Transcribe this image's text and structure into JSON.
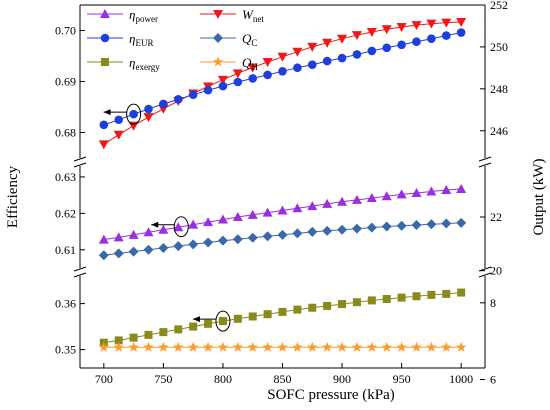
{
  "chart_data": {
    "type": "line",
    "xlabel": "SOFC pressure (kPa)",
    "ylabel_left": "Efficiency",
    "ylabel_right": "Output (kW)",
    "xlim": [
      680,
      1020
    ],
    "x_ticks": [
      "700",
      "750",
      "800",
      "850",
      "900",
      "950",
      "1000"
    ],
    "x": [
      700,
      712.5,
      725,
      737.5,
      750,
      762.5,
      775,
      787.5,
      800,
      812.5,
      825,
      837.5,
      850,
      862.5,
      875,
      887.5,
      900,
      912.5,
      925,
      937.5,
      950,
      962.5,
      975,
      987.5,
      1000
    ],
    "left_axis": {
      "panels": [
        {
          "range": [
            0.675,
            0.705
          ],
          "ticks": [
            "0.68",
            "0.69",
            "0.70"
          ]
        },
        {
          "range": [
            0.605,
            0.633
          ],
          "ticks": [
            "0.61",
            "0.62",
            "0.63"
          ]
        },
        {
          "range": [
            0.346,
            0.366
          ],
          "ticks": [
            "0.35",
            "0.36"
          ]
        }
      ]
    },
    "right_axis": {
      "panels": [
        {
          "range": [
            244.7,
            252
          ],
          "ticks": [
            "246",
            "248",
            "250",
            "252"
          ]
        },
        {
          "range": [
            20.1,
            23.9
          ],
          "ticks": [
            "20",
            "22"
          ]
        },
        {
          "range": [
            6.3,
            8.7
          ],
          "ticks": [
            "6",
            "8"
          ]
        }
      ]
    },
    "legend": {
      "placement": "top-left",
      "entries": [
        {
          "main": "η",
          "sub": "power",
          "color": "#9a2ee0",
          "marker": "triangle-up"
        },
        {
          "main": "W",
          "sub": "net",
          "color": "#f01818",
          "marker": "triangle-down"
        },
        {
          "main": "η",
          "sub": "EUR",
          "color": "#1f3fdc",
          "marker": "circle"
        },
        {
          "main": "Q",
          "sub": "C",
          "color": "#3a68a8",
          "marker": "diamond"
        },
        {
          "main": "η",
          "sub": "exergy",
          "color": "#8a8a1a",
          "marker": "square"
        },
        {
          "main": "Q",
          "sub": "H",
          "color": "#ff9b2e",
          "marker": "star"
        }
      ]
    },
    "series": [
      {
        "name": "η power",
        "axis": "left",
        "panel": 1,
        "color": "#9a2ee0",
        "marker": "triangle-up",
        "values": [
          0.6128,
          0.6134,
          0.6141,
          0.6148,
          0.6155,
          0.6162,
          0.6169,
          0.6176,
          0.6183,
          0.619,
          0.6196,
          0.6202,
          0.6208,
          0.6214,
          0.622,
          0.6226,
          0.6232,
          0.6237,
          0.6242,
          0.6247,
          0.6252,
          0.6256,
          0.626,
          0.6264,
          0.6267
        ]
      },
      {
        "name": "W net",
        "axis": "right",
        "panel": 0,
        "color": "#f01818",
        "marker": "triangle-down",
        "values": [
          245.35,
          245.81,
          246.24,
          246.65,
          247.05,
          247.42,
          247.78,
          248.11,
          248.43,
          248.74,
          249.02,
          249.28,
          249.53,
          249.77,
          250.0,
          250.2,
          250.39,
          250.56,
          250.71,
          250.84,
          250.95,
          251.04,
          251.11,
          251.16,
          251.19
        ]
      },
      {
        "name": "η EUR",
        "axis": "left",
        "panel": 0,
        "color": "#1f3fdc",
        "marker": "circle",
        "values": [
          0.6815,
          0.6825,
          0.6836,
          0.6846,
          0.6856,
          0.6865,
          0.6874,
          0.6883,
          0.6891,
          0.6899,
          0.6906,
          0.6913,
          0.692,
          0.6927,
          0.6933,
          0.694,
          0.6946,
          0.6953,
          0.696,
          0.6966,
          0.6972,
          0.6978,
          0.6984,
          0.699,
          0.6996
        ]
      },
      {
        "name": "Q C",
        "axis": "left",
        "panel": 1,
        "color": "#3a68a8",
        "marker": "diamond",
        "values": [
          0.6085,
          0.609,
          0.6095,
          0.61,
          0.6105,
          0.611,
          0.6115,
          0.612,
          0.6125,
          0.6129,
          0.6133,
          0.6137,
          0.6141,
          0.6145,
          0.6149,
          0.6152,
          0.6155,
          0.6158,
          0.6161,
          0.6164,
          0.6166,
          0.6168,
          0.617,
          0.6172,
          0.6174
        ]
      },
      {
        "name": "η exergy",
        "axis": "left",
        "panel": 2,
        "color": "#8a8a1a",
        "marker": "square",
        "values": [
          0.3515,
          0.352,
          0.3526,
          0.3532,
          0.3538,
          0.3544,
          0.355,
          0.3556,
          0.3562,
          0.3567,
          0.3572,
          0.3577,
          0.3582,
          0.3587,
          0.3591,
          0.3595,
          0.3599,
          0.3603,
          0.3607,
          0.361,
          0.3613,
          0.3616,
          0.3619,
          0.3621,
          0.3624
        ]
      },
      {
        "name": "Q H",
        "axis": "left",
        "panel": 2,
        "color": "#ff9b2e",
        "marker": "star",
        "values": [
          0.3505,
          0.3505,
          0.3505,
          0.3505,
          0.3505,
          0.3505,
          0.3505,
          0.3505,
          0.3505,
          0.3505,
          0.3505,
          0.3505,
          0.3505,
          0.3505,
          0.3505,
          0.3505,
          0.3505,
          0.3505,
          0.3505,
          0.3505,
          0.3505,
          0.3505,
          0.3505,
          0.3505,
          0.3505
        ]
      }
    ],
    "annotations": [
      {
        "type": "ellipse-arrow",
        "series": "η EUR",
        "x": 725,
        "points_to": "left"
      },
      {
        "type": "ellipse-arrow",
        "series": "η power",
        "x": 765,
        "points_to": "left"
      },
      {
        "type": "ellipse-arrow",
        "series": "η exergy",
        "x": 800,
        "points_to": "left"
      }
    ]
  }
}
